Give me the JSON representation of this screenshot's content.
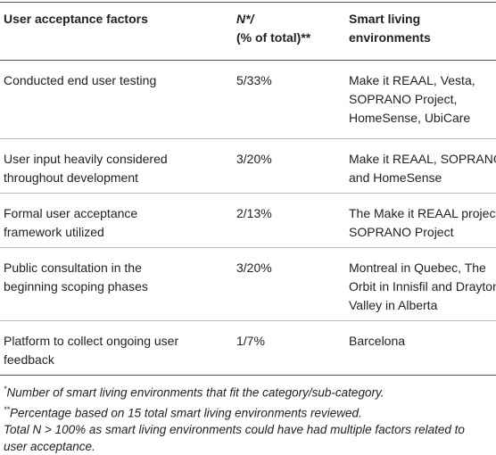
{
  "table": {
    "columns": [
      [
        "User acceptance factors"
      ],
      [
        "N*/",
        "(% of total)**"
      ],
      [
        "Smart living",
        "environments"
      ]
    ],
    "rows": [
      [
        [
          "Conducted end user testing"
        ],
        [
          "5/33%"
        ],
        [
          "Make it REAAL, Vesta,",
          "SOPRANO Project,",
          "HomeSense, UbiCare"
        ]
      ],
      [
        [
          "User input heavily considered",
          "throughout development"
        ],
        [
          "3/20%"
        ],
        [
          "Make it REAAL, SOPRANO",
          "and HomeSense"
        ]
      ],
      [
        [
          "Formal user acceptance",
          "framework utilized"
        ],
        [
          "2/13%"
        ],
        [
          "The Make it REAAL project",
          "SOPRANO Project"
        ]
      ],
      [
        [
          "Public consultation in the",
          "beginning scoping phases"
        ],
        [
          "3/20%"
        ],
        [
          "Montreal in Quebec, The",
          "Orbit in Innisfil and Drayton",
          "Valley in Alberta"
        ]
      ],
      [
        [
          "Platform to collect ongoing user",
          "feedback"
        ],
        [
          "1/7%"
        ],
        [
          "Barcelona"
        ]
      ]
    ]
  },
  "footnotes": [
    {
      "mark": "*",
      "text": "Number of smart living environments that fit the category/sub-category."
    },
    {
      "mark": "**",
      "text": "Percentage based on 15 total smart living environments reviewed."
    },
    {
      "text": [
        "Total N > 100% as smart living environments could have had multiple factors related to",
        "user acceptance."
      ]
    }
  ]
}
